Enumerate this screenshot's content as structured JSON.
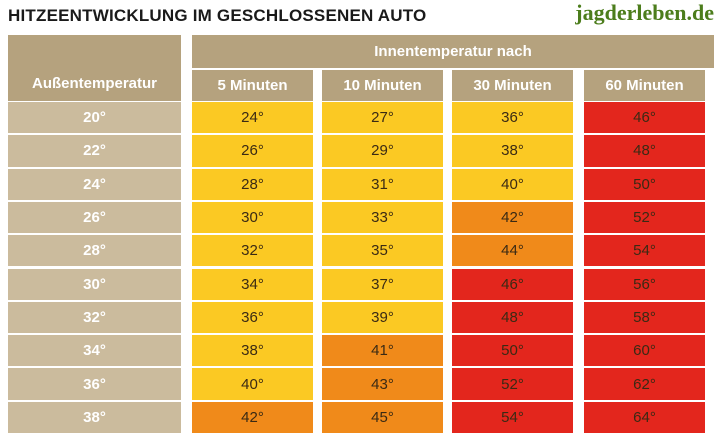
{
  "title": "HITZEENTWICKLUNG IM GESCHLOSSENEN AUTO",
  "brand": "jagderleben.de",
  "colors": {
    "header": "#b5a27e",
    "row_label": "#cbbb9d",
    "yellow": "#fbc923",
    "orange": "#f08a1a",
    "red": "#e3261d"
  },
  "chart_data": {
    "type": "table",
    "row_header": "Außentemperatur",
    "group_header": "Innentemperatur nach",
    "columns": [
      "5 Minuten",
      "10 Minuten",
      "30 Minuten",
      "60 Minuten"
    ],
    "rows": [
      "20°",
      "22°",
      "24°",
      "26°",
      "28°",
      "30°",
      "32°",
      "34°",
      "36°",
      "38°"
    ],
    "values": [
      [
        "24°",
        "27°",
        "36°",
        "46°"
      ],
      [
        "26°",
        "29°",
        "38°",
        "48°"
      ],
      [
        "28°",
        "31°",
        "40°",
        "50°"
      ],
      [
        "30°",
        "33°",
        "42°",
        "52°"
      ],
      [
        "32°",
        "35°",
        "44°",
        "54°"
      ],
      [
        "34°",
        "37°",
        "46°",
        "56°"
      ],
      [
        "36°",
        "39°",
        "48°",
        "58°"
      ],
      [
        "38°",
        "41°",
        "50°",
        "60°"
      ],
      [
        "40°",
        "43°",
        "52°",
        "62°"
      ],
      [
        "42°",
        "45°",
        "54°",
        "64°"
      ]
    ],
    "cell_colors": [
      [
        "yellow",
        "yellow",
        "yellow",
        "red"
      ],
      [
        "yellow",
        "yellow",
        "yellow",
        "red"
      ],
      [
        "yellow",
        "yellow",
        "yellow",
        "red"
      ],
      [
        "yellow",
        "yellow",
        "orange",
        "red"
      ],
      [
        "yellow",
        "yellow",
        "orange",
        "red"
      ],
      [
        "yellow",
        "yellow",
        "red",
        "red"
      ],
      [
        "yellow",
        "yellow",
        "red",
        "red"
      ],
      [
        "yellow",
        "orange",
        "red",
        "red"
      ],
      [
        "yellow",
        "orange",
        "red",
        "red"
      ],
      [
        "orange",
        "orange",
        "red",
        "red"
      ]
    ]
  }
}
